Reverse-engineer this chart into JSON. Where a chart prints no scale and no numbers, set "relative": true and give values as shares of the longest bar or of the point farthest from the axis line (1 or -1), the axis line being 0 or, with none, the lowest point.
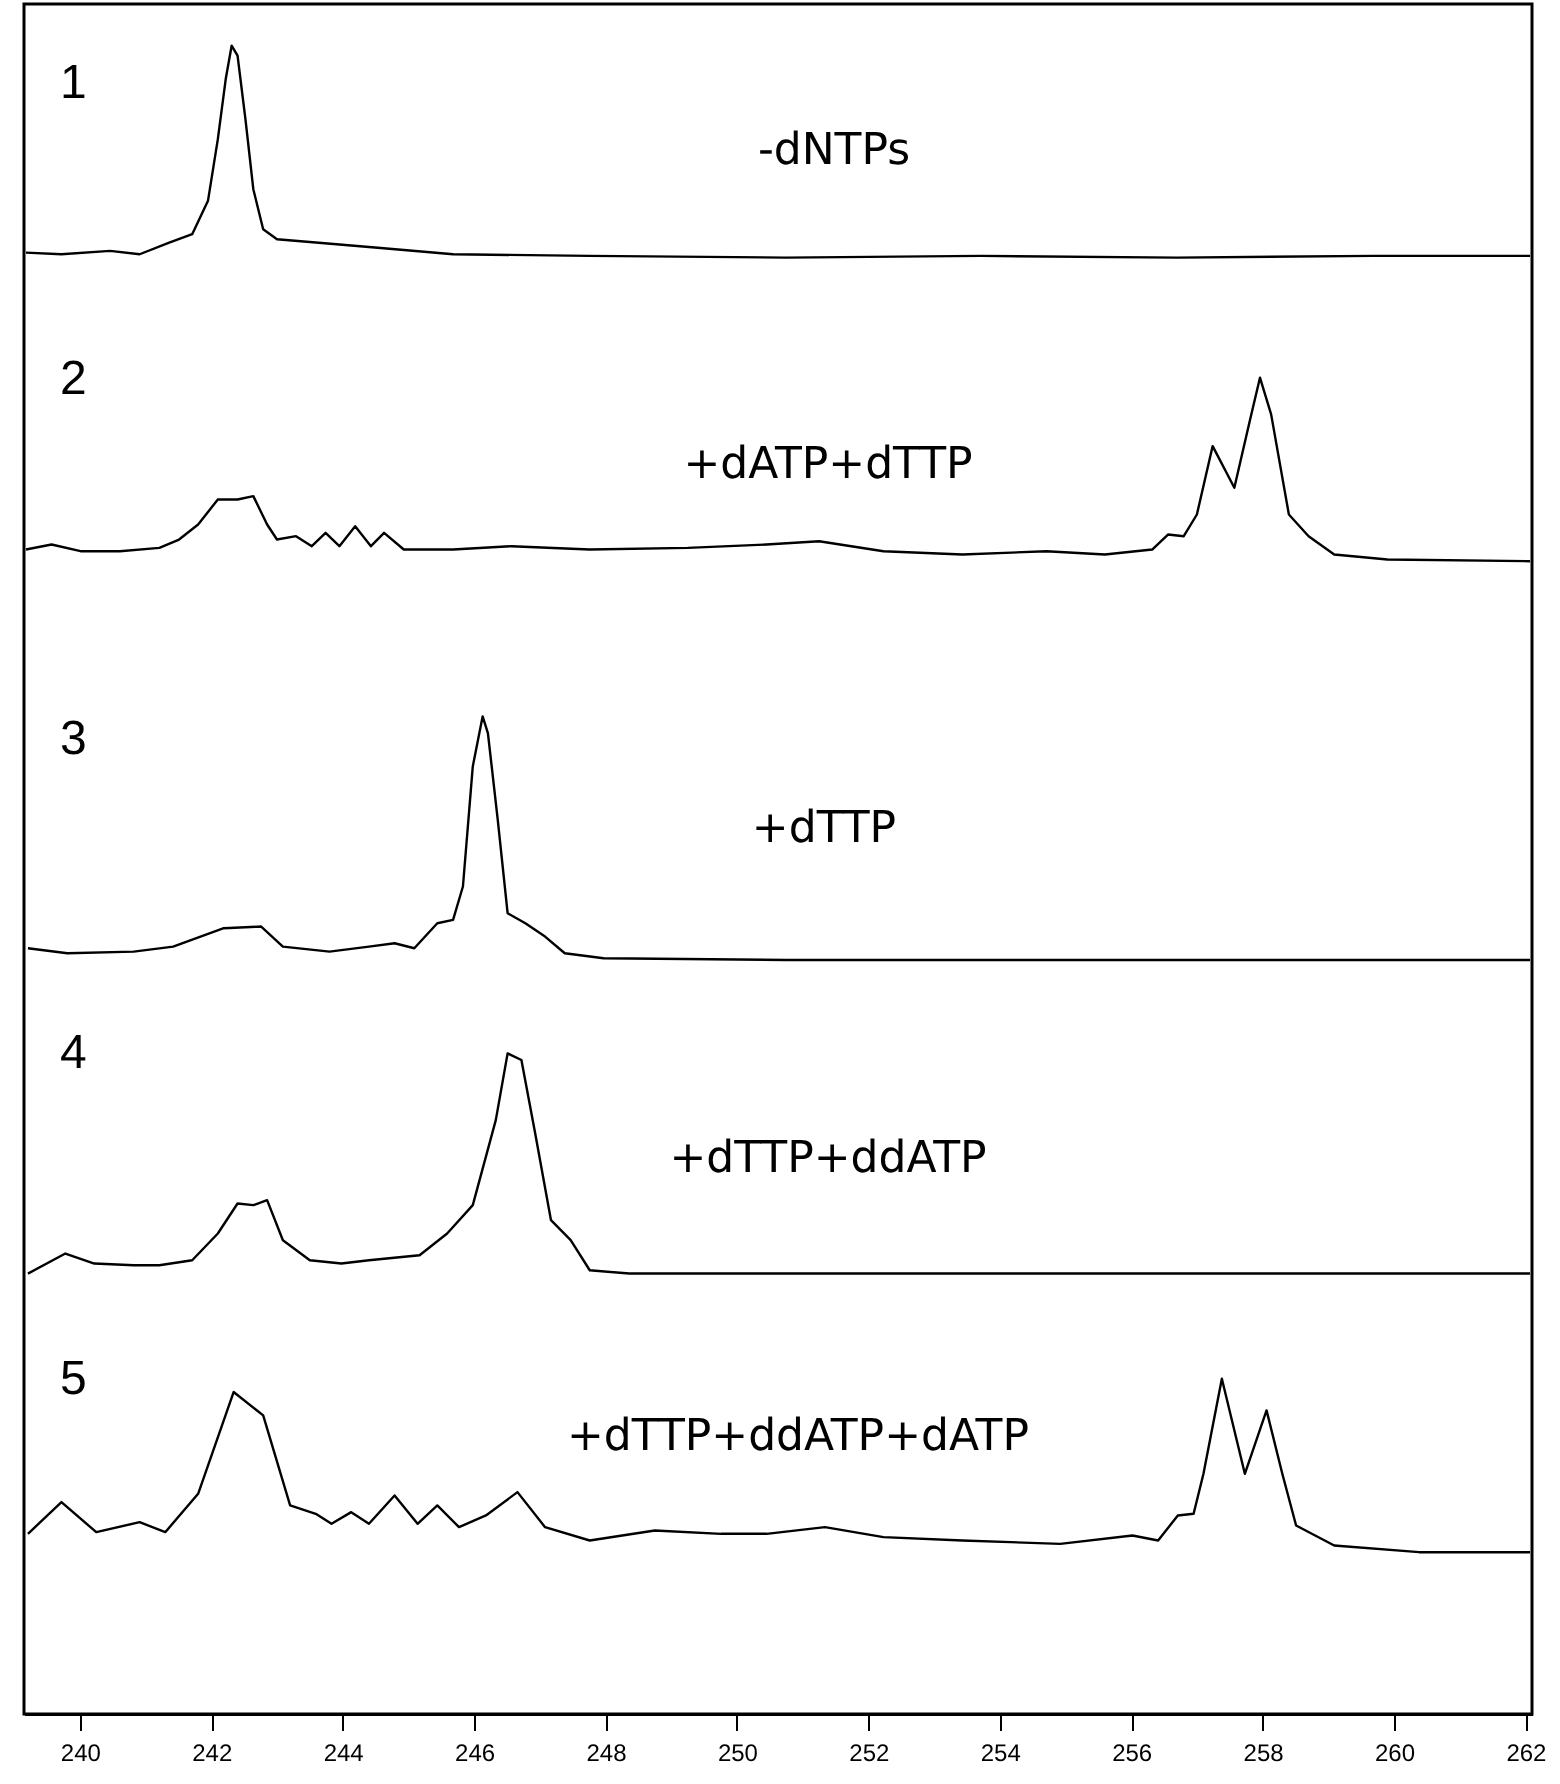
{
  "chart_data": {
    "type": "line",
    "relative": true,
    "xlim": [
      239.15,
      262.1
    ],
    "xticks": [
      240,
      242,
      244,
      246,
      248,
      250,
      252,
      254,
      256,
      258,
      260,
      262
    ],
    "grid": false,
    "tick_labels": "x",
    "annotations": [
      "1",
      "2",
      "3",
      "4",
      "5"
    ],
    "series": [
      {
        "name": "-dNTPs",
        "color": "#000000",
        "x": [
          239.18,
          239.72,
          240.46,
          240.91,
          241.36,
          241.71,
          241.95,
          242.1,
          242.22,
          242.31,
          242.4,
          242.52,
          242.64,
          242.79,
          243.0,
          243.59,
          244.49,
          245.68,
          247.76,
          250.74,
          253.72,
          256.7,
          259.68,
          262.07
        ],
        "values": [
          0.876,
          0.875,
          0.877,
          0.875,
          0.882,
          0.887,
          0.907,
          0.944,
          0.98,
          1.0,
          0.994,
          0.956,
          0.914,
          0.89,
          0.884,
          0.882,
          0.879,
          0.875,
          0.874,
          0.873,
          0.874,
          0.873,
          0.874,
          0.874
        ]
      },
      {
        "name": "+dATP+dTTP",
        "color": "#000000",
        "x": [
          239.18,
          239.57,
          240.01,
          240.61,
          241.21,
          241.51,
          241.8,
          242.1,
          242.4,
          242.64,
          242.85,
          243.0,
          243.29,
          243.53,
          243.74,
          243.95,
          244.19,
          244.43,
          244.63,
          244.93,
          245.68,
          246.57,
          247.76,
          249.25,
          250.45,
          251.25,
          252.23,
          253.43,
          254.71,
          255.6,
          256.32,
          256.56,
          256.8,
          257.0,
          257.24,
          257.57,
          257.81,
          257.96,
          258.13,
          258.4,
          258.7,
          259.09,
          259.9,
          262.07
        ],
        "values": [
          0.698,
          0.701,
          0.697,
          0.697,
          0.699,
          0.704,
          0.713,
          0.728,
          0.728,
          0.73,
          0.713,
          0.704,
          0.706,
          0.7,
          0.708,
          0.7,
          0.712,
          0.7,
          0.708,
          0.698,
          0.698,
          0.7,
          0.698,
          0.699,
          0.701,
          0.703,
          0.697,
          0.695,
          0.697,
          0.695,
          0.698,
          0.707,
          0.706,
          0.719,
          0.76,
          0.735,
          0.776,
          0.801,
          0.779,
          0.719,
          0.706,
          0.695,
          0.692,
          0.691
        ]
      },
      {
        "name": "+dTTP",
        "color": "#000000",
        "x": [
          239.21,
          239.81,
          240.82,
          241.42,
          242.19,
          242.76,
          243.09,
          243.8,
          244.4,
          244.79,
          245.09,
          245.44,
          245.68,
          245.83,
          245.98,
          246.13,
          246.21,
          246.36,
          246.51,
          246.78,
          247.08,
          247.38,
          247.97,
          250.74,
          253.72,
          256.7,
          262.07
        ],
        "values": [
          0.459,
          0.456,
          0.457,
          0.46,
          0.471,
          0.472,
          0.46,
          0.457,
          0.46,
          0.462,
          0.459,
          0.474,
          0.476,
          0.496,
          0.568,
          0.598,
          0.588,
          0.536,
          0.48,
          0.474,
          0.466,
          0.456,
          0.453,
          0.452,
          0.452,
          0.452,
          0.452
        ]
      },
      {
        "name": "+dTTP+ddATP",
        "color": "#000000",
        "x": [
          239.21,
          239.78,
          240.22,
          240.82,
          241.21,
          241.71,
          242.1,
          242.4,
          242.64,
          242.85,
          243.09,
          243.5,
          243.98,
          244.4,
          245.17,
          245.59,
          245.98,
          246.33,
          246.51,
          246.72,
          246.93,
          247.17,
          247.47,
          247.76,
          248.36,
          253.72,
          262.07
        ],
        "values": [
          0.264,
          0.276,
          0.27,
          0.269,
          0.269,
          0.272,
          0.288,
          0.306,
          0.305,
          0.308,
          0.284,
          0.272,
          0.27,
          0.272,
          0.275,
          0.288,
          0.305,
          0.356,
          0.396,
          0.392,
          0.348,
          0.296,
          0.284,
          0.266,
          0.264,
          0.264,
          0.264
        ]
      },
      {
        "name": "+dTTP+ddATP+dATP",
        "color": "#000000",
        "x": [
          239.21,
          239.72,
          240.25,
          240.91,
          241.3,
          241.8,
          242.34,
          242.79,
          243.2,
          243.59,
          243.83,
          244.13,
          244.4,
          244.79,
          245.14,
          245.44,
          245.77,
          246.18,
          246.66,
          247.08,
          247.76,
          248.75,
          249.76,
          250.45,
          251.34,
          252.23,
          253.43,
          254.92,
          256.02,
          256.41,
          256.71,
          256.95,
          257.1,
          257.38,
          257.73,
          258.06,
          258.3,
          258.51,
          259.09,
          260.38,
          262.07
        ],
        "values": [
          0.108,
          0.127,
          0.109,
          0.115,
          0.109,
          0.132,
          0.193,
          0.179,
          0.125,
          0.12,
          0.114,
          0.121,
          0.114,
          0.131,
          0.114,
          0.125,
          0.112,
          0.119,
          0.133,
          0.112,
          0.104,
          0.11,
          0.108,
          0.108,
          0.112,
          0.106,
          0.104,
          0.102,
          0.107,
          0.104,
          0.119,
          0.12,
          0.144,
          0.201,
          0.144,
          0.182,
          0.144,
          0.113,
          0.101,
          0.097,
          0.097
        ]
      }
    ]
  }
}
